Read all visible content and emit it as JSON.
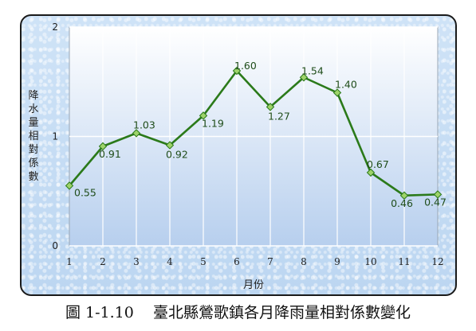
{
  "caption": "圖 1-1.10    臺北縣鶯歌鎮各月降雨量相對係數變化",
  "chart_data": {
    "type": "line",
    "title": "",
    "xlabel": "月份",
    "ylabel": "降水量相對係數",
    "categories": [
      "1",
      "2",
      "3",
      "4",
      "5",
      "6",
      "7",
      "8",
      "9",
      "10",
      "11",
      "12"
    ],
    "values": [
      0.55,
      0.91,
      1.03,
      0.92,
      1.19,
      1.6,
      1.27,
      1.54,
      1.4,
      0.67,
      0.46,
      0.47
    ],
    "data_labels": [
      "0.55",
      "0.91",
      "1.03",
      "0.92",
      "1.19",
      "1.60",
      "1.27",
      "1.54",
      "1.40",
      "0.67",
      "0.46",
      "0.47"
    ],
    "ylim": [
      0,
      2
    ],
    "yticks": [
      "0",
      "1",
      "2"
    ],
    "grid": true,
    "line_color": "#2b7a1a",
    "marker_color": "#9ed36a"
  }
}
